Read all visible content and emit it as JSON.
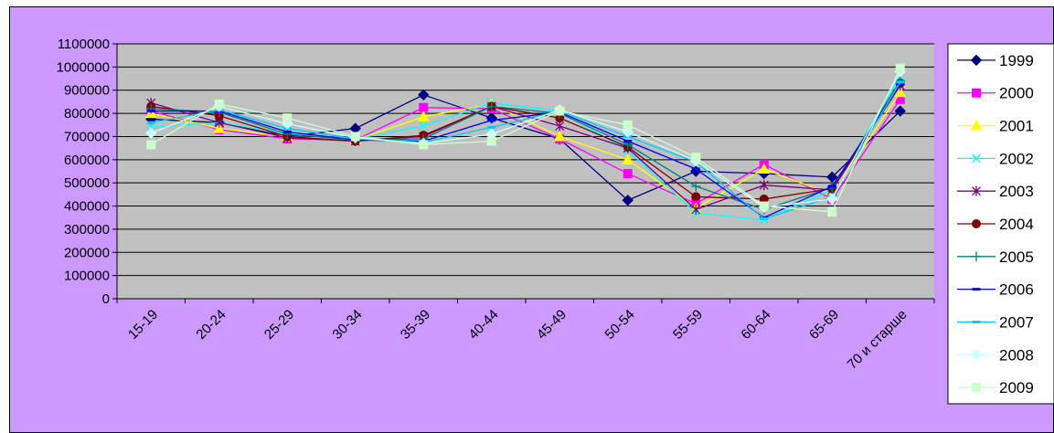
{
  "chart_data": {
    "type": "line",
    "categories": [
      "15-19",
      "20-24",
      "25-29",
      "30-34",
      "35-39",
      "40-44",
      "45-49",
      "50-54",
      "55-59",
      "60-64",
      "65-69",
      "70 и старше"
    ],
    "ylim": [
      0,
      1100000
    ],
    "yticks": [
      "0",
      "100000",
      "200000",
      "300000",
      "400000",
      "500000",
      "600000",
      "700000",
      "800000",
      "900000",
      "1000000",
      "1100000"
    ],
    "grid": true,
    "legend_position": "right",
    "plot_background": "#c0c0c0",
    "figure_background": "#cc99ff",
    "series": [
      {
        "name": "1999",
        "color": "#000080",
        "marker": "diamond",
        "values": [
          775000,
          760000,
          700000,
          735000,
          880000,
          780000,
          690000,
          425000,
          550000,
          540000,
          525000,
          810000
        ]
      },
      {
        "name": "2000",
        "color": "#ff00ff",
        "marker": "square",
        "values": [
          810000,
          730000,
          690000,
          685000,
          825000,
          820000,
          690000,
          540000,
          410000,
          580000,
          430000,
          860000
        ]
      },
      {
        "name": "2001",
        "color": "#ffff00",
        "marker": "triangle",
        "values": [
          800000,
          735000,
          700000,
          685000,
          785000,
          840000,
          700000,
          600000,
          390000,
          560000,
          450000,
          890000
        ]
      },
      {
        "name": "2002",
        "color": "#00ffff",
        "marker": "x",
        "values": [
          740000,
          760000,
          715000,
          690000,
          745000,
          845000,
          810000,
          640000,
          370000,
          340000,
          470000,
          960000
        ]
      },
      {
        "name": "2003",
        "color": "#800080",
        "marker": "star",
        "values": [
          845000,
          760000,
          695000,
          680000,
          700000,
          830000,
          745000,
          650000,
          385000,
          490000,
          470000,
          920000
        ]
      },
      {
        "name": "2004",
        "color": "#800000",
        "marker": "circle",
        "values": [
          830000,
          790000,
          700000,
          680000,
          705000,
          830000,
          780000,
          655000,
          440000,
          430000,
          475000,
          930000
        ]
      },
      {
        "name": "2005",
        "color": "#008080",
        "marker": "plus",
        "values": [
          820000,
          805000,
          710000,
          685000,
          690000,
          830000,
          800000,
          665000,
          485000,
          385000,
          480000,
          940000
        ]
      },
      {
        "name": "2006",
        "color": "#0000ff",
        "marker": "dash",
        "values": [
          810000,
          810000,
          720000,
          685000,
          680000,
          770000,
          805000,
          680000,
          560000,
          350000,
          485000,
          925000
        ]
      },
      {
        "name": "2007",
        "color": "#00ccff",
        "marker": "dash",
        "values": [
          760000,
          815000,
          735000,
          690000,
          675000,
          740000,
          810000,
          700000,
          590000,
          345000,
          440000,
          935000
        ]
      },
      {
        "name": "2008",
        "color": "#ccffff",
        "marker": "diamond",
        "values": [
          715000,
          830000,
          755000,
          695000,
          670000,
          710000,
          815000,
          720000,
          595000,
          395000,
          430000,
          980000
        ]
      },
      {
        "name": "2009",
        "color": "#ccffcc",
        "marker": "square",
        "values": [
          665000,
          840000,
          780000,
          700000,
          665000,
          680000,
          810000,
          750000,
          610000,
          400000,
          375000,
          995000
        ]
      }
    ]
  }
}
